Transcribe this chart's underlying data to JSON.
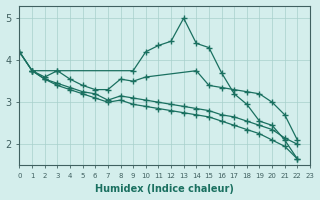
{
  "xlabel": "Humidex (Indice chaleur)",
  "bg_color": "#d4eeec",
  "grid_color": "#a8d0cc",
  "line_color": "#1a7060",
  "axis_color": "#406060",
  "xlim": [
    0,
    23
  ],
  "ylim": [
    1.5,
    5.3
  ],
  "yticks": [
    2,
    3,
    4,
    5
  ],
  "xtick_labels": [
    "0",
    "1",
    "2",
    "3",
    "4",
    "5",
    "6",
    "7",
    "8",
    "9",
    "10",
    "11",
    "12",
    "13",
    "14",
    "15",
    "16",
    "17",
    "18",
    "19",
    "20",
    "21",
    "22",
    "23"
  ],
  "xticks": [
    0,
    1,
    2,
    3,
    4,
    5,
    6,
    7,
    8,
    9,
    10,
    11,
    12,
    13,
    14,
    15,
    16,
    17,
    18,
    19,
    20,
    21,
    22,
    23
  ],
  "curves": [
    {
      "x": [
        0,
        1,
        3,
        9,
        10,
        11,
        12,
        13,
        14,
        15,
        16,
        17,
        18,
        19,
        20,
        21,
        22
      ],
      "y": [
        4.2,
        3.75,
        3.75,
        3.75,
        4.2,
        4.35,
        4.45,
        5.0,
        4.4,
        4.3,
        3.7,
        3.2,
        2.95,
        2.55,
        2.45,
        2.1,
        1.65
      ]
    },
    {
      "x": [
        1,
        2,
        3,
        4,
        5,
        6,
        7,
        8,
        9,
        10,
        14,
        15,
        16,
        17,
        18,
        19,
        20,
        21,
        22
      ],
      "y": [
        3.75,
        3.6,
        3.75,
        3.55,
        3.4,
        3.3,
        3.3,
        3.55,
        3.5,
        3.6,
        3.75,
        3.4,
        3.35,
        3.3,
        3.25,
        3.2,
        3.0,
        2.7,
        2.1
      ]
    },
    {
      "x": [
        0,
        1,
        2,
        3,
        4,
        5,
        6,
        7,
        8,
        9,
        10,
        11,
        12,
        13,
        14,
        15,
        16,
        17,
        18,
        19,
        20,
        21,
        22
      ],
      "y": [
        4.2,
        3.75,
        3.55,
        3.45,
        3.35,
        3.25,
        3.2,
        3.05,
        3.15,
        3.1,
        3.05,
        3.0,
        2.95,
        2.9,
        2.85,
        2.8,
        2.7,
        2.65,
        2.55,
        2.45,
        2.35,
        2.15,
        2.0
      ]
    },
    {
      "x": [
        0,
        1,
        2,
        3,
        4,
        5,
        6,
        7,
        8,
        9,
        10,
        11,
        12,
        13,
        14,
        15,
        16,
        17,
        18,
        19,
        20,
        21,
        22
      ],
      "y": [
        4.2,
        3.75,
        3.55,
        3.4,
        3.3,
        3.2,
        3.1,
        3.0,
        3.05,
        2.95,
        2.9,
        2.85,
        2.8,
        2.75,
        2.7,
        2.65,
        2.55,
        2.45,
        2.35,
        2.25,
        2.1,
        1.95,
        1.65
      ]
    }
  ]
}
